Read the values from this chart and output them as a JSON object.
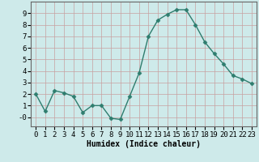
{
  "x": [
    0,
    1,
    2,
    3,
    4,
    5,
    6,
    7,
    8,
    9,
    10,
    11,
    12,
    13,
    14,
    15,
    16,
    17,
    18,
    19,
    20,
    21,
    22,
    23
  ],
  "y": [
    2.0,
    0.5,
    2.3,
    2.1,
    1.8,
    0.4,
    1.0,
    1.0,
    -0.1,
    -0.2,
    1.8,
    3.8,
    7.0,
    8.4,
    8.9,
    9.3,
    9.3,
    8.0,
    6.5,
    5.5,
    4.6,
    3.6,
    3.3,
    2.9
  ],
  "line_color": "#2e7d6e",
  "marker": "D",
  "markersize": 2.5,
  "linewidth": 1.0,
  "xlabel": "Humidex (Indice chaleur)",
  "xlim": [
    -0.5,
    23.5
  ],
  "ylim": [
    -0.8,
    10.0
  ],
  "yticks": [
    0,
    1,
    2,
    3,
    4,
    5,
    6,
    7,
    8,
    9
  ],
  "ytick_labels": [
    "-0",
    "1",
    "2",
    "3",
    "4",
    "5",
    "6",
    "7",
    "8",
    "9"
  ],
  "xticks": [
    0,
    1,
    2,
    3,
    4,
    5,
    6,
    7,
    8,
    9,
    10,
    11,
    12,
    13,
    14,
    15,
    16,
    17,
    18,
    19,
    20,
    21,
    22,
    23
  ],
  "bg_color": "#ceeaea",
  "grid_color": "#b8d8d8",
  "grid_color_major": "#c8a0a0",
  "xlabel_fontsize": 7,
  "tick_fontsize": 6.5
}
